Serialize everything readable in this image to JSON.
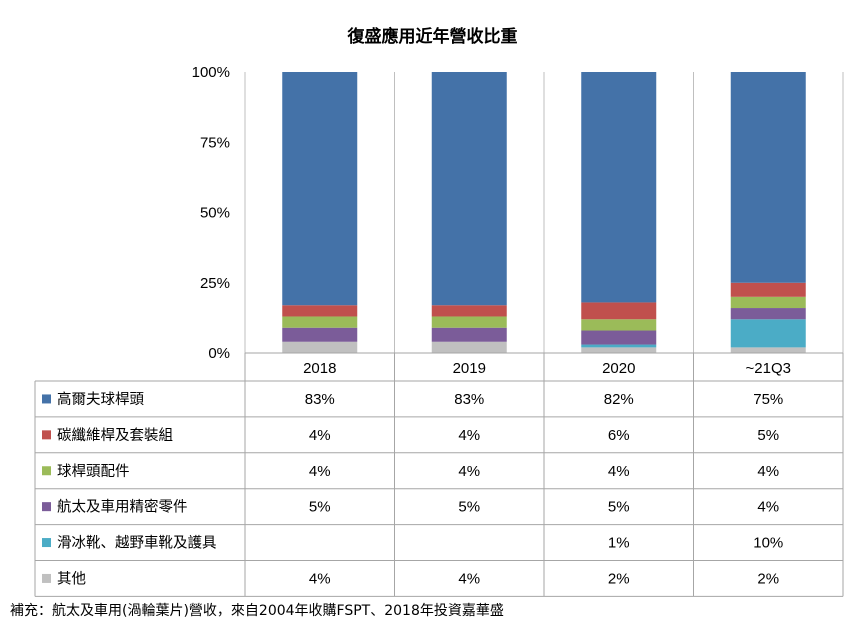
{
  "chart_data": {
    "type": "bar",
    "stacked": true,
    "normalized": true,
    "title": "復盛應用近年營收比重",
    "categories": [
      "2018",
      "2019",
      "2020",
      "~21Q3"
    ],
    "y_ticks": [
      "0%",
      "25%",
      "50%",
      "75%",
      "100%"
    ],
    "ylim": [
      0,
      100
    ],
    "grid": false,
    "legend": "data-table",
    "series": [
      {
        "name": "其他",
        "color": "#c0c0c0",
        "values": [
          4,
          4,
          2,
          2
        ],
        "labels": [
          "4%",
          "4%",
          "2%",
          "2%"
        ]
      },
      {
        "name": "滑冰靴、越野車靴及護具",
        "color": "#4bacc6",
        "values": [
          0,
          0,
          1,
          10
        ],
        "labels": [
          "",
          "",
          "1%",
          "10%"
        ]
      },
      {
        "name": "航太及車用精密零件",
        "color": "#7b5c99",
        "values": [
          5,
          5,
          5,
          4
        ],
        "labels": [
          "5%",
          "5%",
          "5%",
          "4%"
        ]
      },
      {
        "name": "球桿頭配件",
        "color": "#9bbb59",
        "values": [
          4,
          4,
          4,
          4
        ],
        "labels": [
          "4%",
          "4%",
          "4%",
          "4%"
        ]
      },
      {
        "name": "碳纖維桿及套裝組",
        "color": "#c0504d",
        "values": [
          4,
          4,
          6,
          5
        ],
        "labels": [
          "4%",
          "4%",
          "6%",
          "5%"
        ]
      },
      {
        "name": "高爾夫球桿頭",
        "color": "#4472a8",
        "values": [
          83,
          83,
          82,
          75
        ],
        "labels": [
          "83%",
          "83%",
          "82%",
          "75%"
        ]
      }
    ],
    "table_order": [
      "高爾夫球桿頭",
      "碳纖維桿及套裝組",
      "球桿頭配件",
      "航太及車用精密零件",
      "滑冰靴、越野車靴及護具",
      "其他"
    ]
  },
  "footnote": "補充：航太及車用(渦輪葉片)營收，來自2004年收購FSPT、2018年投資嘉華盛"
}
